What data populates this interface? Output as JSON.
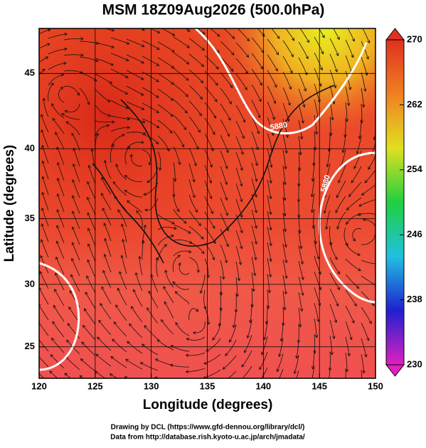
{
  "title": "MSM 18Z09Aug2026 (500.0hPa)",
  "map": {
    "projection": "mercator",
    "xlabel": "Longitude (degrees)",
    "ylabel": "Latitude  (degrees)",
    "xlim": [
      120,
      150
    ],
    "ylim": [
      22.4,
      47.8
    ],
    "xticks": [
      120,
      125,
      130,
      135,
      140,
      145,
      150
    ],
    "yticks": [
      25,
      30,
      35,
      40,
      45
    ],
    "grid": true,
    "contour_labels": [
      "5880",
      "5880"
    ]
  },
  "colorbar": {
    "range": [
      230,
      270
    ],
    "ticks": [
      230,
      238,
      246,
      254,
      262,
      270
    ],
    "colors": [
      "#e020c0",
      "#2020d0",
      "#20c0e0",
      "#20d040",
      "#e0e020",
      "#f08020",
      "#e03020"
    ]
  },
  "footer": [
    "Drawing by DCL (https://www.gfd-dennou.org/library/dcl/)",
    "Data from http://database.rish.kyoto-u.ac.jp/arch/jmadata/"
  ]
}
